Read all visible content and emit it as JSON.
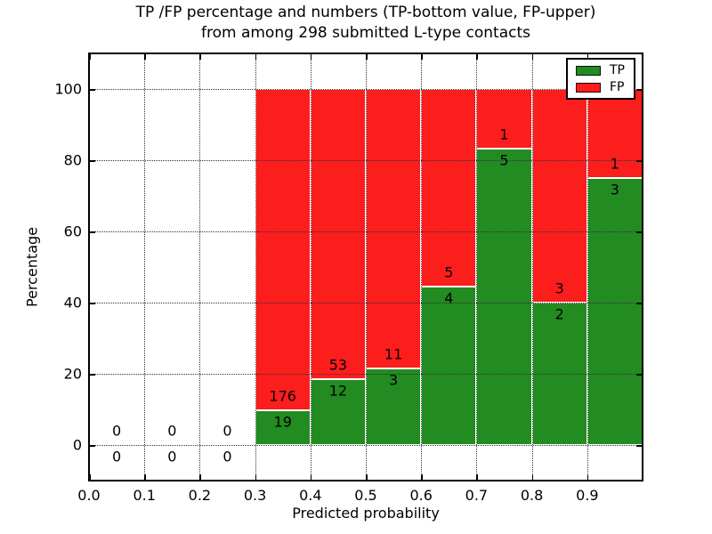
{
  "chart_data": {
    "type": "bar",
    "stacked": true,
    "title_line1": "TP /FP percentage and numbers (TP-bottom value, FP-upper)",
    "title_line2": "from among 298 submitted L-type contacts",
    "xlabel": "Predicted probability",
    "ylabel": "Percentage",
    "xlim": [
      0.0,
      1.0
    ],
    "ylim": [
      -10,
      110
    ],
    "x_ticks": [
      "0.0",
      "0.1",
      "0.2",
      "0.3",
      "0.4",
      "0.5",
      "0.6",
      "0.7",
      "0.8",
      "0.9"
    ],
    "y_ticks": [
      "0",
      "20",
      "40",
      "60",
      "80",
      "100"
    ],
    "grid": "dotted, on top of bars",
    "legend_position": "upper right",
    "bin_width": 0.1,
    "total_contacts": 298,
    "series": [
      {
        "name": "TP",
        "color": "#228b22"
      },
      {
        "name": "FP",
        "color": "#fc1d1d"
      }
    ],
    "bins": [
      {
        "x0": 0.0,
        "x1": 0.1,
        "tp": 0,
        "fp": 0,
        "tp_pct": 0,
        "fp_pct": 0
      },
      {
        "x0": 0.1,
        "x1": 0.2,
        "tp": 0,
        "fp": 0,
        "tp_pct": 0,
        "fp_pct": 0
      },
      {
        "x0": 0.2,
        "x1": 0.3,
        "tp": 0,
        "fp": 0,
        "tp_pct": 0,
        "fp_pct": 0
      },
      {
        "x0": 0.3,
        "x1": 0.4,
        "tp": 19,
        "fp": 176,
        "tp_pct": 9.74,
        "fp_pct": 90.26
      },
      {
        "x0": 0.4,
        "x1": 0.5,
        "tp": 12,
        "fp": 53,
        "tp_pct": 18.46,
        "fp_pct": 81.54
      },
      {
        "x0": 0.5,
        "x1": 0.6,
        "tp": 3,
        "fp": 11,
        "tp_pct": 21.43,
        "fp_pct": 78.57
      },
      {
        "x0": 0.6,
        "x1": 0.7,
        "tp": 4,
        "fp": 5,
        "tp_pct": 44.44,
        "fp_pct": 55.56
      },
      {
        "x0": 0.7,
        "x1": 0.8,
        "tp": 5,
        "fp": 1,
        "tp_pct": 83.33,
        "fp_pct": 16.67
      },
      {
        "x0": 0.8,
        "x1": 0.9,
        "tp": 2,
        "fp": 3,
        "tp_pct": 40.0,
        "fp_pct": 60.0
      },
      {
        "x0": 0.9,
        "x1": 1.0,
        "tp": 3,
        "fp": 1,
        "tp_pct": 75.0,
        "fp_pct": 25.0
      }
    ]
  }
}
